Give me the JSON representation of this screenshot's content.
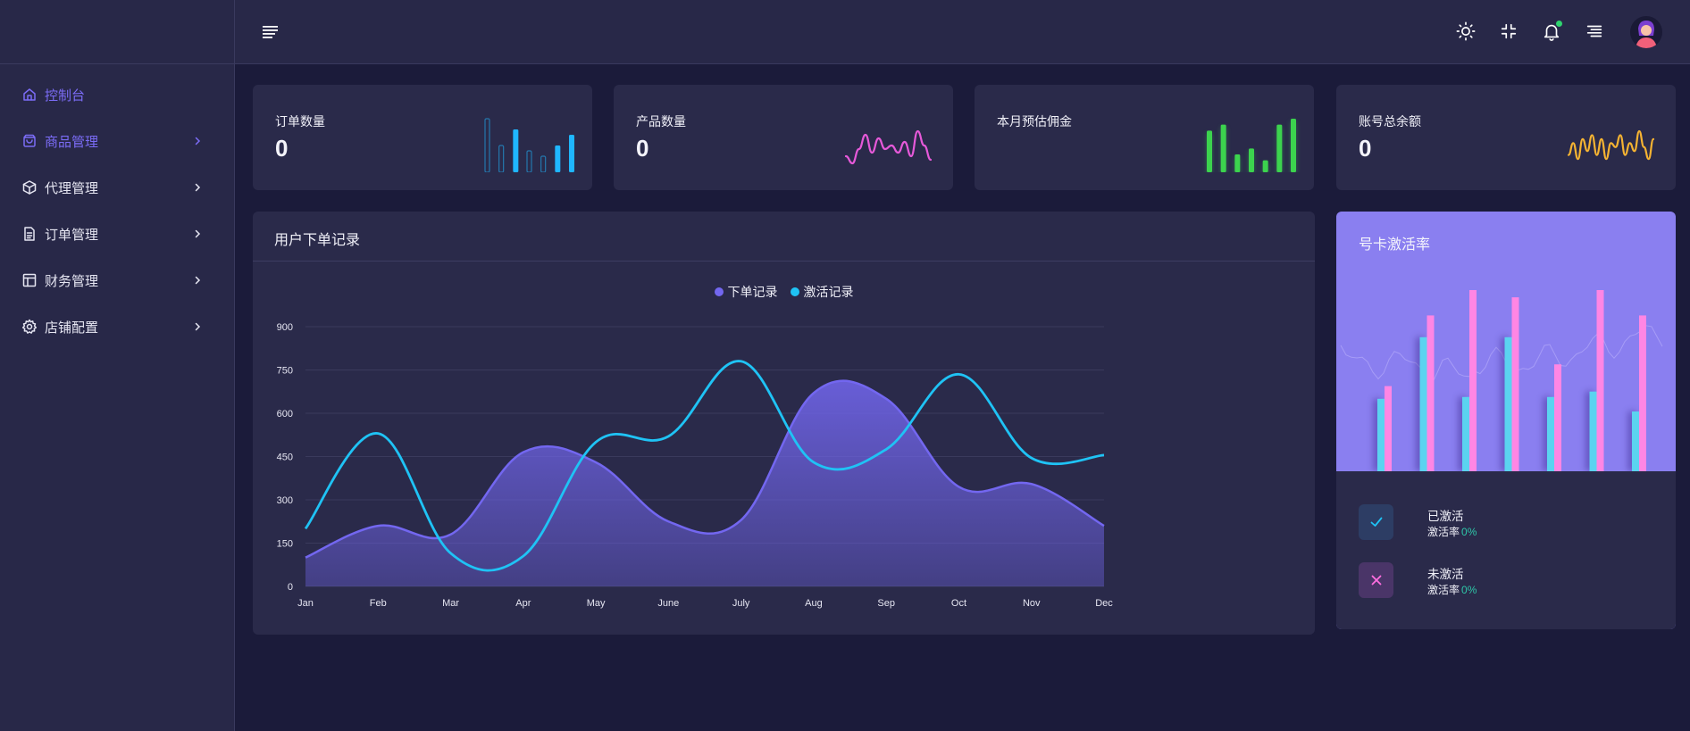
{
  "sidebar": {
    "items": [
      {
        "label": "控制台",
        "icon": "home-icon",
        "state": "active",
        "has_children": false
      },
      {
        "label": "商品管理",
        "icon": "shopping-bag-icon",
        "state": "open",
        "has_children": true
      },
      {
        "label": "代理管理",
        "icon": "box-icon",
        "state": "normal",
        "has_children": true
      },
      {
        "label": "订单管理",
        "icon": "document-icon",
        "state": "normal",
        "has_children": true
      },
      {
        "label": "财务管理",
        "icon": "layout-icon",
        "state": "normal",
        "has_children": true
      },
      {
        "label": "店铺配置",
        "icon": "gear-icon",
        "state": "normal",
        "has_children": true
      }
    ]
  },
  "topbar": {
    "icons": [
      "menu-icon",
      "sun-icon",
      "compress-icon",
      "bell-icon",
      "align-right-icon",
      "avatar"
    ]
  },
  "stats": [
    {
      "label": "订单数量",
      "value": "0",
      "color": "#1fb6ff",
      "spark_type": "bar",
      "spark_values": [
        10,
        5,
        8,
        4,
        3,
        5,
        7
      ]
    },
    {
      "label": "产品数量",
      "value": "0",
      "color": "#e659d9",
      "spark_type": "line",
      "spark_values": [
        3,
        1,
        5,
        9,
        4,
        8,
        5,
        6,
        4,
        7,
        3,
        10,
        6,
        2
      ]
    },
    {
      "label": "本月预估佣金",
      "value": "",
      "color": "#3cd34e",
      "spark_type": "bar",
      "spark_values": [
        7,
        8,
        3,
        4,
        2,
        8,
        9
      ]
    },
    {
      "label": "账号总余额",
      "value": "0",
      "color": "#f5b332",
      "spark_type": "line",
      "spark_values": [
        3,
        6,
        2,
        7,
        4,
        8,
        3,
        7,
        2,
        6,
        5,
        8,
        3,
        6,
        4,
        9,
        5,
        2,
        7
      ]
    }
  ],
  "records": {
    "title": "用户下单记录"
  },
  "chart_data": {
    "type": "area",
    "title": "",
    "categories": [
      "Jan",
      "Feb",
      "Mar",
      "Apr",
      "May",
      "June",
      "July",
      "Aug",
      "Sep",
      "Oct",
      "Nov",
      "Dec"
    ],
    "ylim": [
      0,
      900
    ],
    "yticks": [
      0,
      150,
      300,
      450,
      600,
      750,
      900
    ],
    "grid": true,
    "legend": "top-center",
    "series": [
      {
        "name": "下单记录",
        "color": "#7367f0",
        "values": [
          100,
          210,
          180,
          465,
          430,
          225,
          230,
          670,
          650,
          345,
          355,
          210
        ]
      },
      {
        "name": "激活记录",
        "color": "#1fc3f5",
        "values": [
          200,
          530,
          115,
          105,
          500,
          520,
          780,
          430,
          475,
          735,
          445,
          455
        ]
      }
    ]
  },
  "activation": {
    "title": "号卡激活率",
    "bar_colors": [
      "#5bd3f0",
      "#ff86e4"
    ],
    "bars": [
      {
        "a": 0.4,
        "b": 0.47
      },
      {
        "a": 0.74,
        "b": 0.86
      },
      {
        "a": 0.41,
        "b": 1.0
      },
      {
        "a": 0.74,
        "b": 0.96
      },
      {
        "a": 0.41,
        "b": 0.59
      },
      {
        "a": 0.44,
        "b": 1.0
      },
      {
        "a": 0.33,
        "b": 0.86
      }
    ],
    "items": [
      {
        "name": "已激活",
        "rate_label": "激活率",
        "rate": "0%",
        "icon": "check-icon",
        "color": "#1fc3f5",
        "bg": "#2d3d64"
      },
      {
        "name": "未激活",
        "rate_label": "激活率",
        "rate": "0%",
        "icon": "close-icon",
        "color": "#ff6ee0",
        "bg": "#4a3568"
      }
    ]
  }
}
